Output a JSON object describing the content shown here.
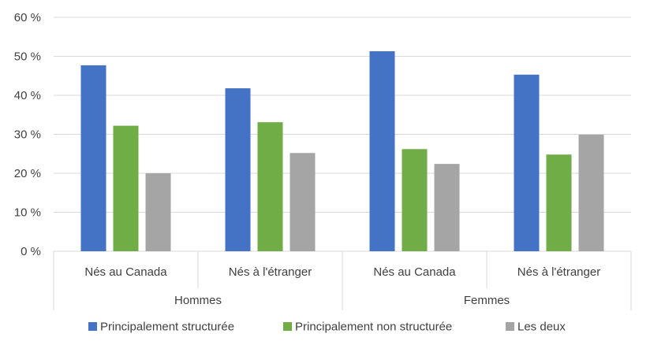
{
  "chart_data": {
    "type": "bar",
    "title": "",
    "xlabel": "",
    "ylabel": "",
    "ylim": [
      0,
      60
    ],
    "yticks": [
      0,
      10,
      20,
      30,
      40,
      50,
      60
    ],
    "ytick_suffix": " %",
    "grid": true,
    "legend_position": "bottom",
    "groups": [
      {
        "label": "Hommes",
        "categories": [
          "Nés au Canada",
          "Nés à l'étranger"
        ]
      },
      {
        "label": "Femmes",
        "categories": [
          "Nés au Canada",
          "Nés à l'étranger"
        ]
      }
    ],
    "series": [
      {
        "name": "Principalement structurée",
        "color": "#4472C4",
        "values": [
          47.7,
          41.8,
          51.3,
          45.3
        ]
      },
      {
        "name": "Principalement non structurée",
        "color": "#70AD47",
        "values": [
          32.2,
          33.1,
          26.2,
          24.8
        ]
      },
      {
        "name": "Les deux",
        "color": "#A5A5A5",
        "values": [
          20.0,
          25.2,
          22.4,
          29.9
        ]
      }
    ]
  }
}
